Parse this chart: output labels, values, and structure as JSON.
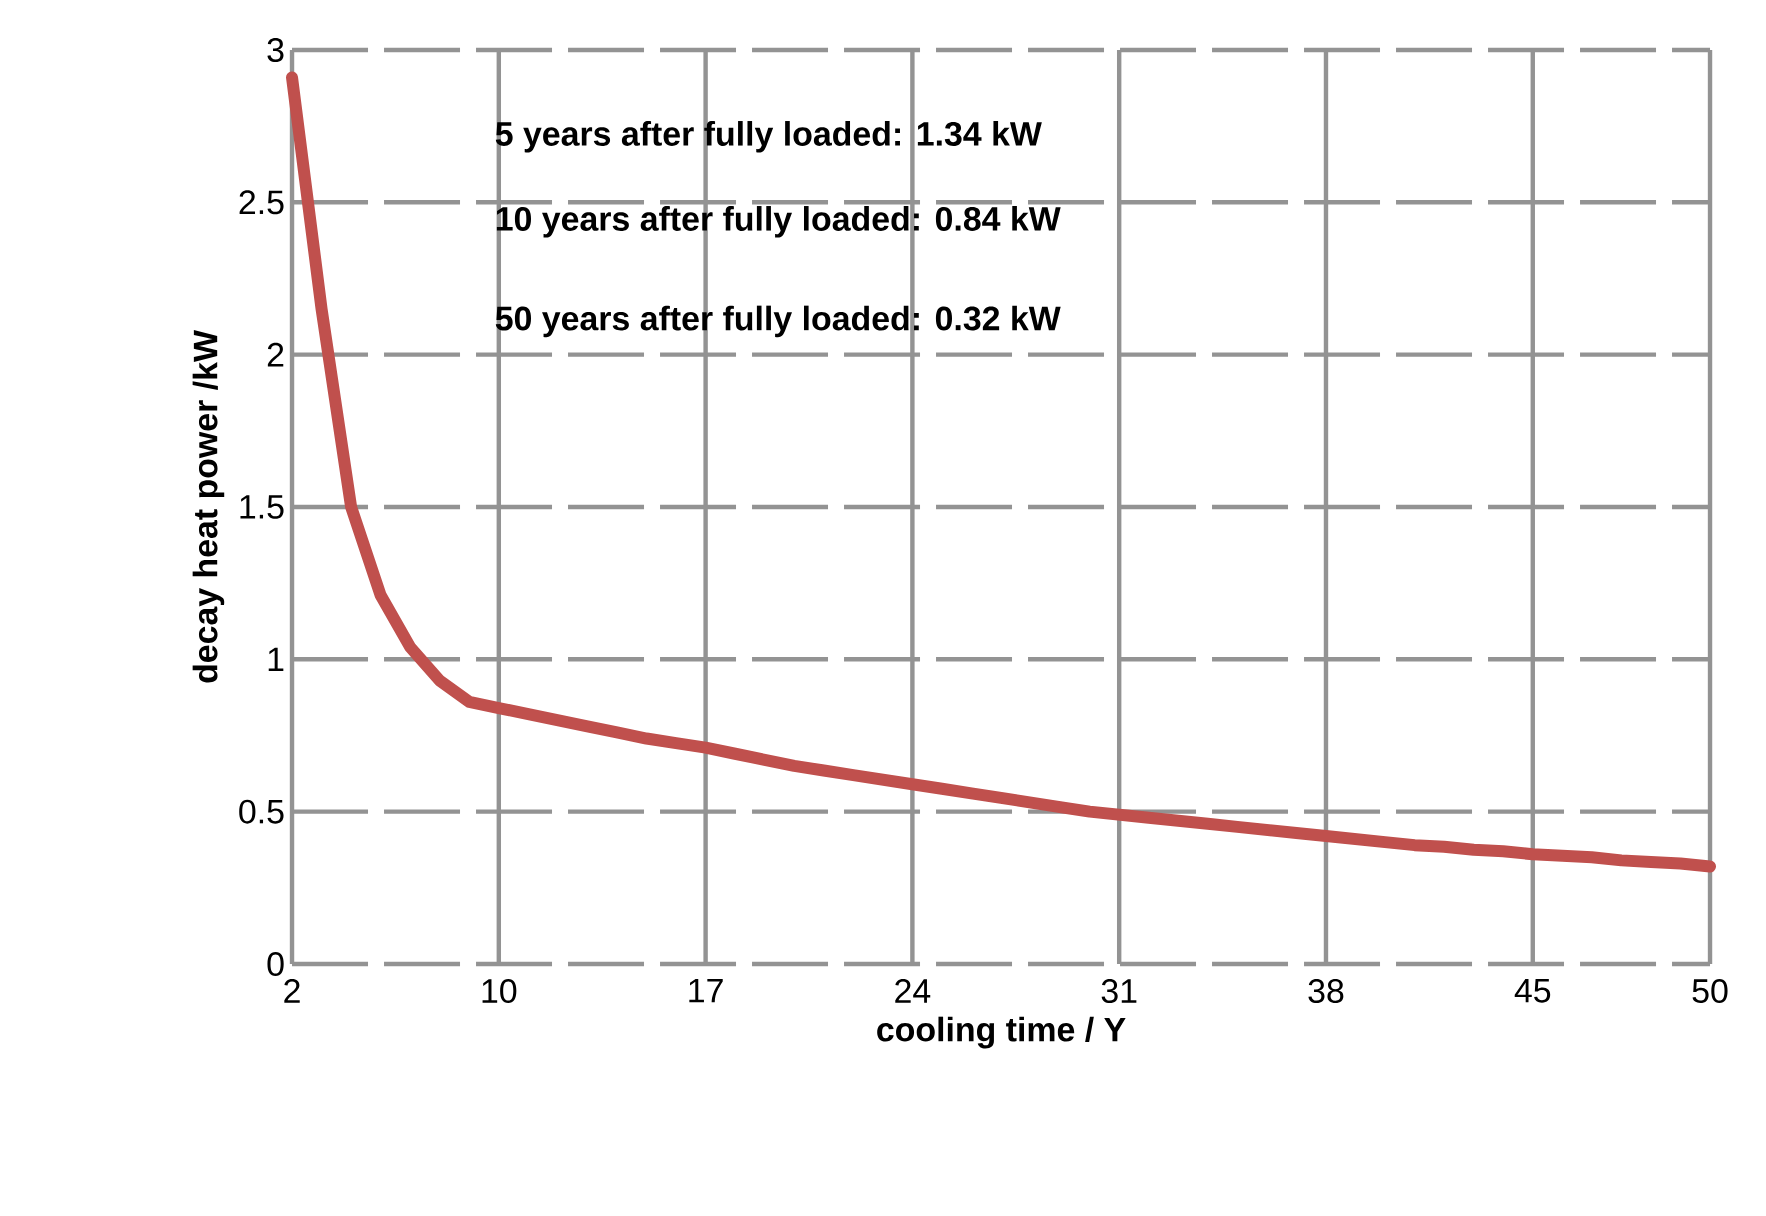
{
  "chart_data": {
    "type": "line",
    "xlabel": "cooling time / Y",
    "ylabel": "decay heat power /kW",
    "categories": [
      "2",
      null,
      null,
      null,
      null,
      null,
      null,
      "10",
      null,
      null,
      null,
      null,
      null,
      null,
      "17",
      null,
      null,
      null,
      null,
      null,
      null,
      "24",
      null,
      null,
      null,
      null,
      null,
      null,
      "31",
      null,
      null,
      null,
      null,
      null,
      null,
      "38",
      null,
      null,
      null,
      null,
      null,
      null,
      "45",
      null,
      null,
      null,
      null,
      null,
      "50"
    ],
    "series": [
      {
        "color": "#c0504d",
        "values": [
          2.91,
          2.15,
          1.5,
          1.21,
          1.04,
          0.93,
          0.86,
          0.84,
          0.82,
          0.8,
          0.78,
          0.76,
          0.74,
          0.725,
          0.71,
          0.69,
          0.67,
          0.65,
          0.635,
          0.62,
          0.605,
          0.59,
          0.575,
          0.56,
          0.545,
          0.53,
          0.515,
          0.5,
          0.49,
          0.48,
          0.47,
          0.46,
          0.45,
          0.44,
          0.43,
          0.42,
          0.41,
          0.4,
          0.39,
          0.385,
          0.375,
          0.37,
          0.36,
          0.355,
          0.35,
          0.34,
          0.335,
          0.33,
          0.32
        ]
      }
    ],
    "ylim": [
      0,
      3
    ],
    "yticks": [
      0,
      0.5,
      1,
      1.5,
      2,
      2.5,
      3
    ],
    "grid": true,
    "marker": "none",
    "line_style": "solid",
    "annotations": [
      "5   years after fully loaded:  1.34 kW",
      "10 years after fully loaded:  0.84 kW",
      "50 years after fully loaded:  0.32 kW"
    ]
  }
}
